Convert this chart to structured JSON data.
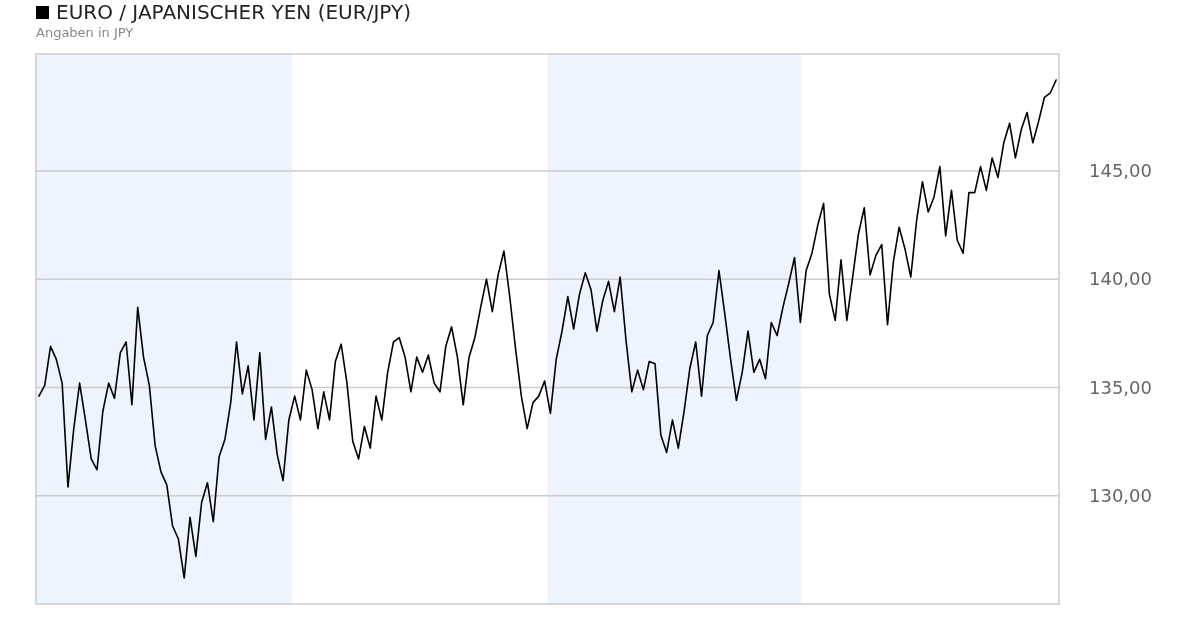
{
  "chart_data": {
    "type": "line",
    "title": "EURO / JAPANISCHER YEN (EUR/JPY)",
    "subtitle": "Angaben in JPY",
    "categories": [
      null,
      null,
      null,
      null,
      null,
      null,
      null,
      null,
      null,
      null,
      null,
      null,
      null,
      null,
      null,
      null,
      null,
      null,
      null,
      null,
      null,
      null,
      null,
      null,
      null,
      null,
      null,
      null,
      null,
      null,
      null,
      null,
      null,
      null,
      null,
      null,
      null,
      null,
      null,
      null,
      null,
      null,
      null,
      null,
      null,
      null,
      null,
      null,
      null,
      null,
      null,
      null,
      null,
      null,
      null,
      null,
      null,
      null,
      null,
      null,
      null,
      null,
      null,
      null,
      null,
      null,
      null,
      null,
      null,
      null,
      null,
      null,
      null,
      null,
      null,
      null,
      null,
      null,
      null,
      null,
      null,
      null,
      null,
      null,
      null,
      null,
      null,
      null,
      null,
      null,
      null,
      null,
      null,
      null,
      null,
      null,
      null,
      null,
      null,
      null,
      null,
      null,
      null,
      null,
      null,
      null,
      null,
      null,
      null,
      null,
      null,
      null,
      null,
      null,
      null,
      null,
      null,
      null,
      null,
      null,
      null,
      null,
      null,
      null,
      null,
      null,
      null,
      null,
      null,
      null,
      null,
      null,
      null,
      null,
      null,
      null,
      null,
      null,
      null,
      null,
      null,
      null,
      null,
      null,
      null,
      null,
      null,
      null,
      null,
      null,
      null,
      null,
      null,
      null,
      null,
      null,
      null,
      null,
      null,
      null,
      null,
      null,
      null,
      null,
      null,
      null,
      null,
      null,
      null,
      null,
      null,
      null,
      null,
      null,
      null,
      null
    ],
    "series": [
      {
        "color": "#000000",
        "values": [
          134.6,
          135.1,
          136.9,
          136.3,
          135.2,
          130.4,
          133.1,
          135.2,
          133.5,
          131.7,
          131.2,
          133.9,
          135.2,
          134.5,
          136.6,
          137.1,
          134.2,
          138.7,
          136.4,
          135.1,
          132.3,
          131.1,
          130.5,
          128.6,
          128.0,
          126.2,
          129.0,
          127.2,
          129.7,
          130.6,
          128.8,
          131.8,
          132.6,
          134.3,
          137.1,
          134.7,
          136.0,
          133.5,
          136.6,
          132.6,
          134.1,
          131.9,
          130.7,
          133.5,
          134.6,
          133.5,
          135.8,
          134.9,
          133.1,
          134.8,
          133.5,
          136.2,
          137.0,
          135.2,
          132.5,
          131.7,
          133.2,
          132.2,
          134.6,
          133.5,
          135.7,
          137.1,
          137.3,
          136.4,
          134.8,
          136.4,
          135.7,
          136.5,
          135.2,
          134.8,
          136.9,
          137.8,
          136.4,
          134.2,
          136.4,
          137.3,
          138.7,
          140.0,
          138.5,
          140.2,
          141.3,
          139.2,
          136.8,
          134.6,
          133.1,
          134.3,
          134.6,
          135.3,
          133.8,
          136.3,
          137.6,
          139.2,
          137.7,
          139.3,
          140.3,
          139.5,
          137.6,
          139.0,
          139.9,
          138.5,
          140.1,
          137.2,
          134.8,
          135.8,
          134.9,
          136.2,
          136.1,
          132.8,
          132.0,
          133.5,
          132.2,
          133.9,
          135.9,
          137.1,
          134.6,
          137.4,
          138.0,
          140.4,
          138.4,
          136.3,
          134.4,
          135.7,
          137.6,
          135.7,
          136.3,
          135.4,
          138.0,
          137.4,
          138.7,
          139.8,
          141.0,
          138.0,
          140.4,
          141.2,
          142.5,
          143.5,
          139.3,
          138.1,
          140.9,
          138.1,
          140.1,
          142.1,
          143.3,
          140.2,
          141.1,
          141.6,
          137.9,
          140.8,
          142.4,
          141.4,
          140.1,
          142.7,
          144.5,
          143.1,
          143.8,
          145.2,
          142.0,
          144.1,
          141.8,
          141.2,
          144.0,
          144.0,
          145.2,
          144.1,
          145.6,
          144.7,
          146.3,
          147.2,
          145.6,
          146.9,
          147.7,
          146.3,
          147.3,
          148.4,
          148.6,
          149.2
        ]
      }
    ],
    "ylim": [
      125,
      150.4
    ],
    "yticks": [
      {
        "value": 130,
        "label": "130,00"
      },
      {
        "value": 135,
        "label": "135,00"
      },
      {
        "value": 140,
        "label": "140,00"
      },
      {
        "value": 145,
        "label": "145,00"
      }
    ],
    "grid": "y",
    "tick_labels": "y",
    "line_style": "solid"
  }
}
